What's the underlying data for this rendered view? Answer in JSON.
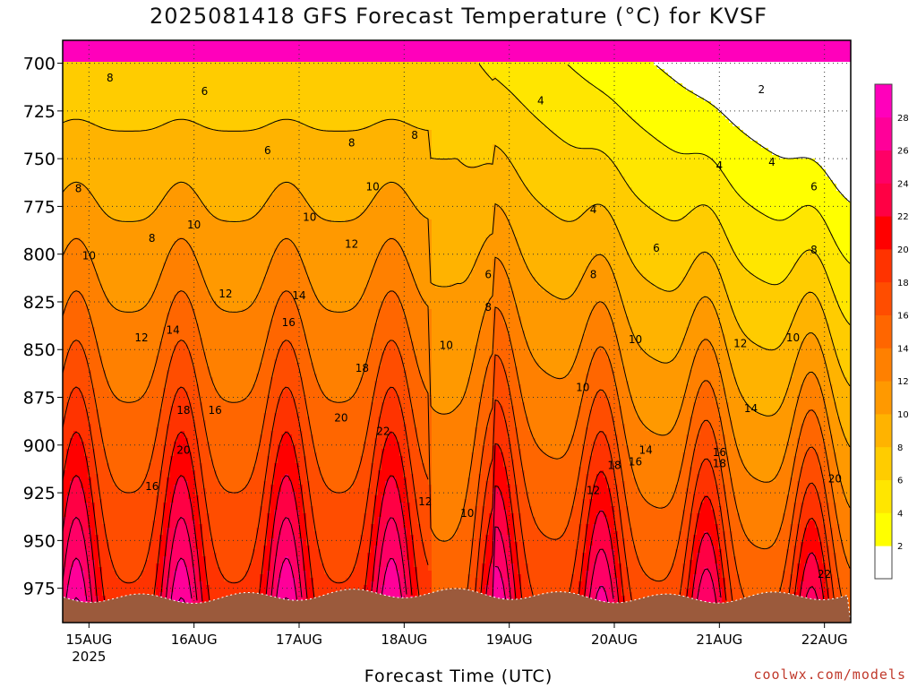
{
  "page": {
    "title": "2025081418 GFS Forecast Temperature (°C) for KVSF",
    "credit": "coolwx.com/models"
  },
  "chart_data": {
    "type": "heatmap",
    "title": "2025081418 GFS Forecast Temperature (°C) for KVSF",
    "xlabel": "Forecast Time (UTC)",
    "ylabel": "",
    "x_ticks": [
      {
        "label": "15AUG",
        "sublabel": "2025",
        "day": 15
      },
      {
        "label": "16AUG",
        "sublabel": "",
        "day": 16
      },
      {
        "label": "17AUG",
        "sublabel": "",
        "day": 17
      },
      {
        "label": "18AUG",
        "sublabel": "",
        "day": 18
      },
      {
        "label": "19AUG",
        "sublabel": "",
        "day": 19
      },
      {
        "label": "20AUG",
        "sublabel": "",
        "day": 20
      },
      {
        "label": "21AUG",
        "sublabel": "",
        "day": 21
      },
      {
        "label": "22AUG",
        "sublabel": "",
        "day": 22
      }
    ],
    "y_ticks": [
      700,
      725,
      750,
      775,
      800,
      825,
      850,
      875,
      900,
      925,
      950,
      975
    ],
    "ylim": [
      688,
      993
    ],
    "grid": true,
    "colorbar": {
      "levels": [
        0,
        2,
        4,
        6,
        8,
        10,
        12,
        14,
        16,
        18,
        20,
        22,
        24,
        26,
        28,
        30
      ],
      "labels": [
        2,
        4,
        6,
        8,
        10,
        12,
        14,
        16,
        18,
        20,
        22,
        24,
        26,
        28
      ],
      "colors": [
        "#ffffff",
        "#ffff00",
        "#ffe600",
        "#ffcc00",
        "#ffb300",
        "#ff9900",
        "#ff8000",
        "#ff6600",
        "#ff4d00",
        "#ff3300",
        "#ff0000",
        "#ff0044",
        "#ff0066",
        "#ff0099",
        "#ff00bb"
      ]
    },
    "contour_labels": [
      {
        "text": "8",
        "day": 15.2,
        "p": 708
      },
      {
        "text": "6",
        "day": 16.1,
        "p": 715
      },
      {
        "text": "4",
        "day": 19.3,
        "p": 720
      },
      {
        "text": "2",
        "day": 21.4,
        "p": 714
      },
      {
        "text": "2",
        "day": 22.4,
        "p": 731
      },
      {
        "text": "6",
        "day": 16.7,
        "p": 746
      },
      {
        "text": "8",
        "day": 17.5,
        "p": 742
      },
      {
        "text": "8",
        "day": 18.1,
        "p": 738
      },
      {
        "text": "4",
        "day": 21.0,
        "p": 754
      },
      {
        "text": "4",
        "day": 21.5,
        "p": 752
      },
      {
        "text": "8",
        "day": 14.6,
        "p": 770
      },
      {
        "text": "8",
        "day": 14.9,
        "p": 766
      },
      {
        "text": "10",
        "day": 17.7,
        "p": 765
      },
      {
        "text": "6",
        "day": 21.9,
        "p": 765
      },
      {
        "text": "10",
        "day": 16.0,
        "p": 785
      },
      {
        "text": "10",
        "day": 17.1,
        "p": 781
      },
      {
        "text": "4",
        "day": 19.8,
        "p": 777
      },
      {
        "text": "8",
        "day": 15.6,
        "p": 792
      },
      {
        "text": "10",
        "day": 15.0,
        "p": 801
      },
      {
        "text": "12",
        "day": 17.5,
        "p": 795
      },
      {
        "text": "6",
        "day": 20.4,
        "p": 797
      },
      {
        "text": "8",
        "day": 21.9,
        "p": 798
      },
      {
        "text": "6",
        "day": 18.8,
        "p": 811
      },
      {
        "text": "8",
        "day": 19.8,
        "p": 811
      },
      {
        "text": "12",
        "day": 16.3,
        "p": 821
      },
      {
        "text": "14",
        "day": 17.0,
        "p": 822
      },
      {
        "text": "8",
        "day": 18.8,
        "p": 828
      },
      {
        "text": "12",
        "day": 22.4,
        "p": 832
      },
      {
        "text": "16",
        "day": 16.9,
        "p": 836
      },
      {
        "text": "12",
        "day": 15.5,
        "p": 844
      },
      {
        "text": "14",
        "day": 15.8,
        "p": 840
      },
      {
        "text": "10",
        "day": 21.7,
        "p": 844
      },
      {
        "text": "10",
        "day": 20.2,
        "p": 845
      },
      {
        "text": "12",
        "day": 21.2,
        "p": 847
      },
      {
        "text": "10",
        "day": 18.4,
        "p": 848
      },
      {
        "text": "14",
        "day": 22.4,
        "p": 852
      },
      {
        "text": "18",
        "day": 17.6,
        "p": 860
      },
      {
        "text": "10",
        "day": 19.7,
        "p": 870
      },
      {
        "text": "16",
        "day": 22.4,
        "p": 872
      },
      {
        "text": "18",
        "day": 15.9,
        "p": 882
      },
      {
        "text": "16",
        "day": 16.2,
        "p": 882
      },
      {
        "text": "14",
        "day": 21.3,
        "p": 881
      },
      {
        "text": "20",
        "day": 17.4,
        "p": 886
      },
      {
        "text": "22",
        "day": 17.8,
        "p": 893
      },
      {
        "text": "20",
        "day": 15.9,
        "p": 903
      },
      {
        "text": "14",
        "day": 20.3,
        "p": 903
      },
      {
        "text": "16",
        "day": 21.0,
        "p": 904
      },
      {
        "text": "18",
        "day": 22.4,
        "p": 904
      },
      {
        "text": "16",
        "day": 20.2,
        "p": 909
      },
      {
        "text": "18",
        "day": 20.0,
        "p": 911
      },
      {
        "text": "18",
        "day": 21.0,
        "p": 910
      },
      {
        "text": "20",
        "day": 22.1,
        "p": 918
      },
      {
        "text": "16",
        "day": 15.6,
        "p": 922
      },
      {
        "text": "12",
        "day": 19.8,
        "p": 924
      },
      {
        "text": "12",
        "day": 18.2,
        "p": 930
      },
      {
        "text": "10",
        "day": 18.6,
        "p": 936
      },
      {
        "text": "22",
        "day": 22.0,
        "p": 968
      }
    ]
  }
}
